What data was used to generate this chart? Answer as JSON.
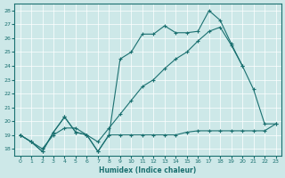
{
  "xlabel": "Humidex (Indice chaleur)",
  "background_color": "#cde8e8",
  "grid_color": "#ffffff",
  "line_color": "#1a7070",
  "xlim": [
    -0.5,
    23.5
  ],
  "ylim": [
    17.5,
    28.5
  ],
  "xticks": [
    0,
    1,
    2,
    3,
    4,
    5,
    6,
    7,
    8,
    9,
    10,
    11,
    12,
    13,
    14,
    15,
    16,
    17,
    18,
    19,
    20,
    21,
    22,
    23
  ],
  "yticks": [
    18,
    19,
    20,
    21,
    22,
    23,
    24,
    25,
    26,
    27,
    28
  ],
  "series1_x": [
    0,
    1,
    2,
    3,
    4,
    5,
    6,
    7,
    8,
    9,
    10,
    11,
    12,
    13,
    14,
    15,
    16,
    17,
    18,
    19,
    20,
    21,
    22,
    23
  ],
  "series1_y": [
    19.0,
    18.5,
    17.8,
    19.2,
    20.3,
    19.2,
    19.0,
    17.8,
    19.0,
    19.0,
    19.0,
    19.0,
    19.0,
    19.0,
    19.0,
    19.2,
    19.3,
    19.3,
    19.3,
    19.3,
    19.3,
    19.3,
    19.3,
    19.8
  ],
  "series2_x": [
    0,
    1,
    2,
    3,
    4,
    5,
    6,
    7,
    8,
    9,
    10,
    11,
    12,
    13,
    14,
    15,
    16,
    17,
    18,
    19,
    20,
    21,
    22,
    23
  ],
  "series2_y": [
    19.0,
    18.5,
    17.8,
    19.2,
    20.3,
    19.2,
    19.0,
    17.8,
    19.0,
    24.5,
    25.0,
    26.3,
    26.3,
    26.9,
    26.4,
    26.4,
    26.5,
    28.0,
    27.3,
    25.6,
    24.0,
    22.3,
    19.8,
    19.8
  ],
  "series3_x": [
    0,
    1,
    2,
    3,
    4,
    5,
    6,
    7,
    8,
    9,
    10,
    11,
    12,
    13,
    14,
    15,
    16,
    17,
    18,
    19,
    20
  ],
  "series3_y": [
    19.0,
    18.5,
    18.0,
    19.0,
    19.5,
    19.5,
    19.0,
    18.5,
    19.5,
    20.5,
    21.5,
    22.5,
    23.0,
    23.8,
    24.5,
    25.0,
    25.8,
    26.5,
    26.8,
    25.5,
    24.0
  ]
}
